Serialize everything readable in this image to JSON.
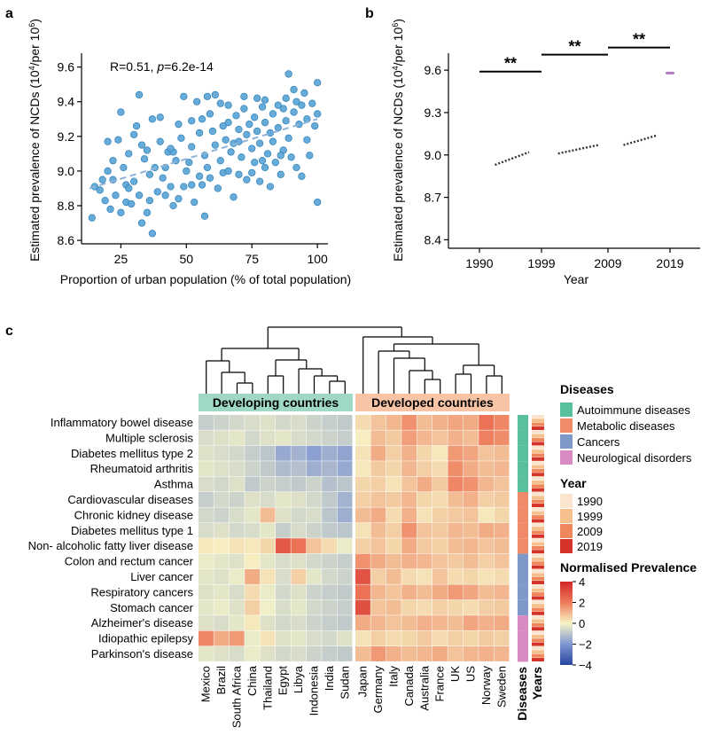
{
  "panels": {
    "a": "a",
    "b": "b",
    "c": "c"
  },
  "colors": {
    "scatter_fill": "#5aa5d6",
    "scatter_stroke": "#2f7fb8",
    "trend": "#8fb3d9",
    "dev_band": "#9fd8c4",
    "developed_band": "#f8c4a6",
    "axis": "#000000",
    "autoimmune": "#59bf9e",
    "metabolic": "#f08a6a",
    "cancers": "#7e98c8",
    "neuro": "#d98ac2",
    "y1990": "#fbe5cf",
    "y1999": "#f6c08c",
    "y2009": "#f0865c",
    "y2019": "#d4332a"
  },
  "chart_data": [
    {
      "type": "scatter",
      "panel": "a",
      "annotation": {
        "r_text": "R=0.51, ",
        "p_label": "p",
        "p_value": "=6.2e-14"
      },
      "ylabel_main": "Estimated prevalence of NCDs (10",
      "ylabel_sup1": "4",
      "ylabel_mid": "/per 10",
      "ylabel_sup2": "6",
      "ylabel_end": ")",
      "xlabel": "Proportion of urban population (% of total population)",
      "xlim": [
        10,
        104
      ],
      "ylim": [
        8.58,
        9.68
      ],
      "xticks": [
        25,
        50,
        75,
        100
      ],
      "yticks": [
        8.6,
        8.8,
        9.0,
        9.2,
        9.4,
        9.6
      ],
      "ytick_labels": [
        "8.6",
        "8.8",
        "9.0",
        "9.2",
        "9.4",
        "9.6"
      ],
      "trend": {
        "x": [
          13,
          100
        ],
        "y": [
          8.9,
          9.3
        ]
      },
      "points": [
        [
          14,
          8.73
        ],
        [
          15,
          8.91
        ],
        [
          17,
          8.89
        ],
        [
          18,
          8.95
        ],
        [
          19,
          8.83
        ],
        [
          20,
          9.17
        ],
        [
          21,
          8.78
        ],
        [
          22,
          8.95
        ],
        [
          22,
          9.06
        ],
        [
          23,
          8.86
        ],
        [
          24,
          9.18
        ],
        [
          25,
          9.34
        ],
        [
          25,
          8.76
        ],
        [
          26,
          9.02
        ],
        [
          27,
          8.92
        ],
        [
          27,
          8.82
        ],
        [
          28,
          9.1
        ],
        [
          29,
          8.81
        ],
        [
          30,
          8.94
        ],
        [
          31,
          9.26
        ],
        [
          32,
          9.44
        ],
        [
          32,
          8.86
        ],
        [
          33,
          9.15
        ],
        [
          33,
          8.7
        ],
        [
          34,
          9.07
        ],
        [
          35,
          8.76
        ],
        [
          35,
          9.12
        ],
        [
          36,
          8.83
        ],
        [
          37,
          8.64
        ],
        [
          37,
          9.3
        ],
        [
          38,
          9.02
        ],
        [
          39,
          8.88
        ],
        [
          40,
          9.17
        ],
        [
          40,
          9.31
        ],
        [
          41,
          8.96
        ],
        [
          42,
          8.86
        ],
        [
          43,
          9.11
        ],
        [
          44,
          8.91
        ],
        [
          45,
          9.11
        ],
        [
          45,
          8.8
        ],
        [
          46,
          9.06
        ],
        [
          47,
          8.84
        ],
        [
          48,
          9.19
        ],
        [
          49,
          9.43
        ],
        [
          49,
          8.91
        ],
        [
          50,
          9.0
        ],
        [
          51,
          9.05
        ],
        [
          52,
          9.14
        ],
        [
          52,
          8.92
        ],
        [
          53,
          8.82
        ],
        [
          54,
          9.4
        ],
        [
          55,
          9.22
        ],
        [
          55,
          8.97
        ],
        [
          56,
          9.3
        ],
        [
          57,
          9.09
        ],
        [
          57,
          8.74
        ],
        [
          58,
          9.02
        ],
        [
          59,
          9.33
        ],
        [
          59,
          8.96
        ],
        [
          60,
          9.23
        ],
        [
          61,
          9.15
        ],
        [
          61,
          9.44
        ],
        [
          62,
          8.9
        ],
        [
          63,
          9.06
        ],
        [
          64,
          9.26
        ],
        [
          64,
          8.99
        ],
        [
          65,
          9.18
        ],
        [
          66,
          9.0
        ],
        [
          66,
          9.38
        ],
        [
          67,
          9.11
        ],
        [
          68,
          8.85
        ],
        [
          68,
          9.16
        ],
        [
          69,
          9.32
        ],
        [
          70,
          9.24
        ],
        [
          70,
          8.98
        ],
        [
          71,
          9.08
        ],
        [
          72,
          9.43
        ],
        [
          72,
          9.36
        ],
        [
          73,
          9.21
        ],
        [
          73,
          8.95
        ],
        [
          74,
          9.27
        ],
        [
          75,
          9.13
        ],
        [
          75,
          8.99
        ],
        [
          76,
          9.31
        ],
        [
          76,
          9.05
        ],
        [
          77,
          9.42
        ],
        [
          77,
          9.23
        ],
        [
          78,
          9.16
        ],
        [
          78,
          8.94
        ],
        [
          79,
          9.37
        ],
        [
          79,
          9.06
        ],
        [
          80,
          9.28
        ],
        [
          80,
          9.41
        ],
        [
          81,
          9.1
        ],
        [
          82,
          9.22
        ],
        [
          82,
          8.91
        ],
        [
          83,
          9.33
        ],
        [
          83,
          9.17
        ],
        [
          84,
          9.05
        ],
        [
          85,
          9.38
        ],
        [
          85,
          9.25
        ],
        [
          86,
          8.98
        ],
        [
          87,
          9.36
        ],
        [
          87,
          9.12
        ],
        [
          88,
          9.42
        ],
        [
          88,
          9.29
        ],
        [
          89,
          9.56
        ],
        [
          89,
          9.19
        ],
        [
          90,
          9.08
        ],
        [
          91,
          9.34
        ],
        [
          91,
          9.47
        ],
        [
          92,
          9.02
        ],
        [
          93,
          9.27
        ],
        [
          94,
          9.38
        ],
        [
          94,
          8.97
        ],
        [
          95,
          9.45
        ],
        [
          96,
          9.18
        ],
        [
          96,
          9.3
        ],
        [
          97,
          9.09
        ],
        [
          98,
          9.39
        ],
        [
          99,
          9.26
        ],
        [
          100,
          9.51
        ],
        [
          100,
          8.82
        ],
        [
          100,
          9.33
        ],
        [
          63,
          9.39
        ],
        [
          58,
          9.43
        ],
        [
          44,
          9.13
        ],
        [
          30,
          9.21
        ],
        [
          52,
          9.29
        ],
        [
          70,
          9.17
        ],
        [
          36,
          8.98
        ],
        [
          47,
          9.27
        ],
        [
          56,
          8.92
        ],
        [
          66,
          9.28
        ],
        [
          86,
          9.09
        ],
        [
          92,
          9.4
        ],
        [
          20,
          9.0
        ],
        [
          28,
          8.9
        ],
        [
          42,
          9.02
        ],
        [
          80,
          9.02
        ]
      ]
    },
    {
      "type": "line",
      "panel": "b",
      "xlabel": "Year",
      "ylabel_main": "Estimated prevalence of NCDs (10",
      "ylabel_sup1": "4",
      "ylabel_mid": "/per 10",
      "ylabel_sup2": "6",
      "ylabel_end": ")",
      "xtick_labels": [
        "1990",
        "1999",
        "2009",
        "2019"
      ],
      "ylim": [
        8.34,
        9.72
      ],
      "yticks": [
        8.4,
        8.7,
        9.0,
        9.3,
        9.6
      ],
      "ytick_labels": [
        "8.4",
        "8.7",
        "9.0",
        "9.3",
        "9.6"
      ],
      "series": [
        {
          "name": "1990-1999",
          "x0": 0.25,
          "x1": 0.8,
          "y0": 8.93,
          "y1": 9.02
        },
        {
          "name": "1999-2009",
          "x0": 1.25,
          "x1": 1.85,
          "y0": 9.01,
          "y1": 9.07
        },
        {
          "name": "2009-2019",
          "x0": 2.25,
          "x1": 2.8,
          "y0": 9.07,
          "y1": 9.14
        },
        {
          "name": "2019",
          "x0": 2.95,
          "x1": 3.05,
          "y0": 9.58,
          "y1": 9.58
        }
      ],
      "significance": [
        {
          "from": 0,
          "to": 1,
          "y": 9.59,
          "label": "**"
        },
        {
          "from": 1,
          "to": 2,
          "y": 9.71,
          "label": "**"
        },
        {
          "from": 2,
          "to": 3,
          "y": 9.76,
          "label": "**"
        }
      ]
    },
    {
      "type": "heatmap",
      "panel": "c",
      "group_labels": [
        "Developing countries",
        "Developed countries"
      ],
      "rows": [
        "Inflammatory bowel disease",
        "Multiple sclerosis",
        "Diabetes mellitus type 2",
        "Rheumatoid arthritis",
        "Asthma",
        "Cardiovascular  diseases",
        "Chronic  kidney  disease",
        "Diabetes mellitus type 1",
        "Non- alcoholic fatty liver disease",
        "Colon and rectum cancer",
        "Liver cancer",
        "Respiratory cancers",
        "Stomach cancer",
        "Alzheimer's disease",
        "Idiopathic epilepsy",
        "Parkinson's disease"
      ],
      "developing_columns": [
        "Mexico",
        "Brazil",
        "South Africa",
        "China",
        "Thailand",
        "Egypt",
        "Libya",
        "Indonesia",
        "India",
        "Sudan"
      ],
      "developed_columns": [
        "Japan",
        "Germany",
        "Italy",
        "Canada",
        "Australia",
        "France",
        "UK",
        "US",
        "Norway",
        "Sweden"
      ],
      "row_disease_class": [
        "autoimmune",
        "autoimmune",
        "autoimmune",
        "autoimmune",
        "autoimmune",
        "metabolic",
        "metabolic",
        "metabolic",
        "metabolic",
        "cancers",
        "cancers",
        "cancers",
        "cancers",
        "neuro",
        "neuro",
        "neuro"
      ],
      "developing_values": [
        [
          -0.8,
          -0.7,
          -0.6,
          -0.5,
          -0.4,
          -0.6,
          -0.5,
          -0.7,
          -0.8,
          -0.9
        ],
        [
          -0.5,
          -0.4,
          -0.3,
          -0.6,
          -0.4,
          -0.3,
          -0.5,
          -0.6,
          -0.7,
          -0.8
        ],
        [
          -0.4,
          -0.5,
          -0.6,
          -0.8,
          -1.0,
          -1.6,
          -1.4,
          -1.8,
          -1.5,
          -1.7
        ],
        [
          -0.3,
          -0.4,
          -0.5,
          -0.7,
          -0.9,
          -1.2,
          -1.1,
          -1.5,
          -1.3,
          -1.6
        ],
        [
          -0.5,
          -0.6,
          -0.4,
          -0.9,
          -0.7,
          -0.8,
          -0.9,
          -0.7,
          -1.1,
          -1.0
        ],
        [
          -0.8,
          -0.6,
          -0.7,
          -0.4,
          -0.5,
          -0.3,
          -0.4,
          -0.6,
          -0.9,
          -1.4
        ],
        [
          -0.6,
          -0.7,
          -0.5,
          -0.3,
          0.9,
          -0.4,
          -0.6,
          -0.5,
          -1.0,
          -1.5
        ],
        [
          -0.5,
          -0.4,
          -0.6,
          -0.5,
          -0.3,
          -0.8,
          -0.5,
          -0.7,
          -0.9,
          -1.0
        ],
        [
          0.2,
          0.1,
          0.3,
          0.2,
          0.5,
          2.8,
          2.2,
          0.8,
          0.4,
          -0.2
        ],
        [
          -0.2,
          -0.3,
          -0.4,
          0.1,
          -0.3,
          -0.5,
          -0.4,
          -0.6,
          -0.7,
          -0.8
        ],
        [
          -0.3,
          -0.4,
          -0.2,
          1.2,
          0.3,
          -0.5,
          0.6,
          -0.3,
          -0.6,
          -0.7
        ],
        [
          -0.4,
          -0.3,
          -0.5,
          0.4,
          -0.2,
          -0.6,
          -0.4,
          -0.7,
          -0.8,
          -0.9
        ],
        [
          -0.3,
          -0.2,
          -0.4,
          0.6,
          -0.1,
          -0.5,
          -0.3,
          -0.6,
          -0.7,
          -0.8
        ],
        [
          -0.4,
          -0.5,
          -0.3,
          0.2,
          -0.4,
          -0.6,
          -0.5,
          -0.7,
          -0.8,
          -0.9
        ],
        [
          1.8,
          1.2,
          1.5,
          -0.2,
          0.3,
          -0.4,
          -0.3,
          -0.5,
          -0.6,
          -0.4
        ],
        [
          -0.3,
          -0.4,
          -0.5,
          -0.2,
          -0.4,
          -0.6,
          -0.5,
          -0.7,
          -0.8,
          -0.9
        ]
      ],
      "developed_values": [
        [
          0.4,
          0.8,
          1.0,
          1.6,
          0.9,
          1.1,
          1.3,
          1.2,
          2.2,
          1.8
        ],
        [
          0.1,
          0.9,
          0.7,
          1.4,
          1.0,
          0.8,
          1.1,
          0.9,
          1.9,
          1.7
        ],
        [
          0.3,
          1.2,
          0.6,
          1.1,
          0.5,
          0.2,
          1.5,
          1.3,
          0.8,
          0.9
        ],
        [
          0.2,
          0.7,
          0.5,
          1.0,
          0.6,
          0.4,
          1.7,
          1.2,
          0.9,
          1.0
        ],
        [
          0.5,
          0.6,
          0.3,
          0.8,
          1.2,
          0.7,
          1.8,
          1.6,
          1.0,
          0.8
        ],
        [
          0.6,
          0.8,
          0.7,
          1.0,
          0.5,
          0.4,
          0.9,
          1.1,
          0.6,
          0.7
        ],
        [
          0.9,
          1.2,
          0.4,
          1.1,
          0.3,
          0.6,
          0.7,
          0.8,
          0.2,
          0.5
        ],
        [
          0.3,
          0.9,
          0.6,
          1.6,
          0.8,
          0.7,
          1.0,
          0.9,
          1.2,
          1.1
        ],
        [
          0.6,
          0.8,
          0.5,
          1.2,
          0.7,
          0.6,
          0.9,
          1.0,
          0.8,
          0.9
        ],
        [
          1.6,
          1.2,
          0.9,
          1.1,
          1.0,
          0.8,
          0.7,
          0.9,
          0.6,
          0.8
        ],
        [
          2.9,
          0.6,
          0.9,
          0.4,
          0.3,
          0.8,
          0.4,
          0.5,
          0.3,
          0.4
        ],
        [
          2.2,
          1.0,
          0.8,
          1.1,
          0.9,
          1.2,
          1.5,
          1.3,
          0.9,
          1.0
        ],
        [
          3.0,
          0.8,
          0.9,
          0.5,
          0.4,
          0.6,
          0.5,
          0.4,
          0.6,
          0.7
        ],
        [
          1.2,
          1.0,
          0.8,
          0.9,
          1.1,
          1.0,
          0.9,
          1.3,
          1.1,
          1.2
        ],
        [
          0.3,
          0.6,
          0.4,
          0.5,
          0.7,
          0.4,
          0.6,
          0.5,
          0.7,
          0.6
        ],
        [
          0.9,
          1.5,
          1.1,
          0.9,
          1.0,
          1.2,
          0.8,
          1.0,
          1.1,
          1.0
        ]
      ],
      "side_labels": [
        "Diseases",
        "Years"
      ],
      "legend": {
        "diseases_title": "Diseases",
        "diseases": [
          {
            "key": "autoimmune",
            "label": "Autoimmune diseases"
          },
          {
            "key": "metabolic",
            "label": "Metabolic diseases"
          },
          {
            "key": "cancers",
            "label": "Cancers"
          },
          {
            "key": "neuro",
            "label": "Neurological disorders"
          }
        ],
        "year_title": "Year",
        "years": [
          {
            "key": "y1990",
            "label": "1990"
          },
          {
            "key": "y1999",
            "label": "1999"
          },
          {
            "key": "y2009",
            "label": "2009"
          },
          {
            "key": "y2019",
            "label": "2019"
          }
        ],
        "scale_title": "Normalised Prevalence",
        "scale_ticks": [
          4,
          2,
          0,
          -2,
          -4
        ],
        "scale_tick_labels": [
          "4",
          "2",
          "0",
          "−2",
          "−4"
        ]
      }
    }
  ]
}
